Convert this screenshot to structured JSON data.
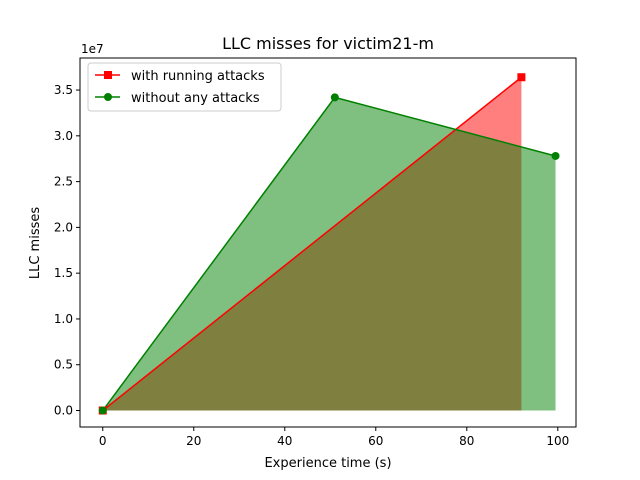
{
  "chart_data": {
    "type": "area",
    "title": "LLC misses for victim21-m",
    "xlabel": "Experience time (s)",
    "ylabel": "LLC misses",
    "y_offset_label": "1e7",
    "xlim": [
      -5,
      104
    ],
    "ylim": [
      -0.18,
      3.85
    ],
    "x_ticks": [
      0,
      20,
      40,
      60,
      80,
      100
    ],
    "y_ticks": [
      0.0,
      0.5,
      1.0,
      1.5,
      2.0,
      2.5,
      3.0,
      3.5
    ],
    "x_tick_labels": [
      "0",
      "20",
      "40",
      "60",
      "80",
      "100"
    ],
    "y_tick_labels": [
      "0.0",
      "0.5",
      "1.0",
      "1.5",
      "2.0",
      "2.5",
      "3.0",
      "3.5"
    ],
    "grid": false,
    "legend_position": "top-left",
    "series": [
      {
        "name": "with running attacks",
        "color": "#ff0000",
        "fill_color": "#ff0000",
        "marker": "square",
        "x": [
          0,
          92
        ],
        "y": [
          0.0,
          3.64
        ]
      },
      {
        "name": "without any attacks",
        "color": "#008000",
        "fill_color": "#008000",
        "marker": "circle",
        "x": [
          0,
          51,
          99.5
        ],
        "y": [
          0.0,
          3.42,
          2.78
        ]
      }
    ]
  }
}
